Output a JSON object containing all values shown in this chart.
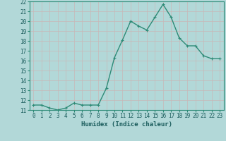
{
  "title": "",
  "xlabel": "Humidex (Indice chaleur)",
  "ylabel": "",
  "x_values": [
    0,
    1,
    2,
    3,
    4,
    5,
    6,
    7,
    8,
    9,
    10,
    11,
    12,
    13,
    14,
    15,
    16,
    17,
    18,
    19,
    20,
    21,
    22,
    23
  ],
  "y_values": [
    11.5,
    11.5,
    11.2,
    11.0,
    11.2,
    11.7,
    11.5,
    11.5,
    11.5,
    13.2,
    16.3,
    18.1,
    20.0,
    19.5,
    19.1,
    20.4,
    21.7,
    20.4,
    18.3,
    17.5,
    17.5,
    16.5,
    16.2,
    16.2
  ],
  "line_color": "#2e8b77",
  "marker": "+",
  "marker_color": "#2e8b77",
  "bg_color": "#b2d8d8",
  "grid_color": "#c0cece",
  "ylim": [
    11,
    22
  ],
  "xlim": [
    -0.5,
    23.5
  ],
  "yticks": [
    11,
    12,
    13,
    14,
    15,
    16,
    17,
    18,
    19,
    20,
    21,
    22
  ],
  "xticks": [
    0,
    1,
    2,
    3,
    4,
    5,
    6,
    7,
    8,
    9,
    10,
    11,
    12,
    13,
    14,
    15,
    16,
    17,
    18,
    19,
    20,
    21,
    22,
    23
  ],
  "tick_fontsize": 5.5,
  "label_fontsize": 6.5,
  "line_width": 1.0,
  "marker_size": 3.5,
  "marker_linewidth": 0.8
}
